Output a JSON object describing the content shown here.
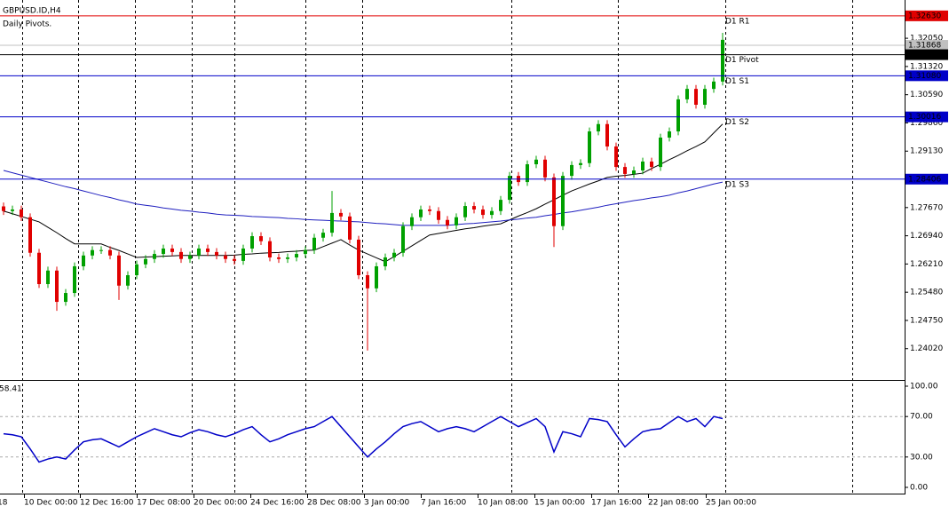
{
  "chart_data": [
    {
      "type": "candlestick",
      "title": "GBPUSD.ID,H4",
      "subtitle": "Daily Pivots.",
      "up_color": "#00a000",
      "down_color": "#e00000",
      "open": [
        1.277,
        1.2758,
        1.2762,
        1.2742,
        1.265,
        1.2569,
        1.2604,
        1.2523,
        1.2546,
        1.2615,
        1.2643,
        1.2657,
        1.2657,
        1.2643,
        1.2565,
        1.2592,
        1.262,
        1.2634,
        1.2647,
        1.2661,
        1.2652,
        1.2634,
        1.2643,
        1.2661,
        1.2652,
        1.2643,
        1.2634,
        1.2629,
        1.2661,
        1.2693,
        1.268,
        1.2638,
        1.2634,
        1.2638,
        1.2647,
        1.2657,
        1.2689,
        1.2702,
        1.2753,
        1.2744,
        1.2684,
        1.2592,
        1.2558,
        1.2615,
        1.2638,
        1.265,
        1.2719,
        1.2742,
        1.2762,
        1.2758,
        1.2735,
        1.2721,
        1.2742,
        1.2771,
        1.2762,
        1.2748,
        1.2758,
        1.2787,
        1.2849,
        1.2833,
        1.2879,
        1.2891,
        1.2845,
        1.2719,
        1.2849,
        1.2877,
        1.2882,
        1.2964,
        1.2983,
        1.2925,
        1.2872,
        1.2854,
        1.2863,
        1.2886,
        1.2872,
        1.2948,
        1.2964,
        1.3047,
        1.3074,
        1.3033,
        1.3074,
        1.3093
      ],
      "high": [
        1.278,
        1.2772,
        1.2772,
        1.2752,
        1.266,
        1.2614,
        1.2614,
        1.2556,
        1.2625,
        1.2653,
        1.2667,
        1.2667,
        1.2667,
        1.2653,
        1.2602,
        1.263,
        1.2644,
        1.2657,
        1.2671,
        1.2671,
        1.2662,
        1.2653,
        1.2671,
        1.2671,
        1.2662,
        1.2653,
        1.2644,
        1.2671,
        1.2703,
        1.2703,
        1.269,
        1.2648,
        1.2648,
        1.2657,
        1.2667,
        1.2699,
        1.2712,
        1.281,
        1.2763,
        1.2754,
        1.2694,
        1.2602,
        1.2625,
        1.2648,
        1.266,
        1.2729,
        1.2752,
        1.2772,
        1.2772,
        1.2768,
        1.2745,
        1.2752,
        1.2781,
        1.2781,
        1.2772,
        1.2768,
        1.2797,
        1.2859,
        1.2859,
        1.2889,
        1.2901,
        1.2901,
        1.2855,
        1.2859,
        1.2887,
        1.2892,
        1.2974,
        1.2993,
        1.2993,
        1.2935,
        1.2882,
        1.2873,
        1.2896,
        1.2896,
        1.2958,
        1.2974,
        1.3057,
        1.3084,
        1.3084,
        1.3084,
        1.3103,
        1.3219
      ],
      "low": [
        1.2748,
        1.2748,
        1.2732,
        1.264,
        1.2559,
        1.2559,
        1.25,
        1.2513,
        1.2536,
        1.2605,
        1.2633,
        1.2647,
        1.2633,
        1.2528,
        1.2555,
        1.2582,
        1.261,
        1.2624,
        1.2637,
        1.2642,
        1.2624,
        1.2624,
        1.2633,
        1.2642,
        1.2633,
        1.2624,
        1.2619,
        1.2619,
        1.2651,
        1.267,
        1.2628,
        1.2624,
        1.2624,
        1.2628,
        1.2637,
        1.2647,
        1.2679,
        1.2692,
        1.2734,
        1.2674,
        1.2582,
        1.2397,
        1.2548,
        1.2605,
        1.2628,
        1.264,
        1.2709,
        1.2732,
        1.2748,
        1.2725,
        1.2711,
        1.2711,
        1.2732,
        1.2752,
        1.2738,
        1.2738,
        1.2748,
        1.2777,
        1.2823,
        1.2823,
        1.2869,
        1.2835,
        1.2665,
        1.2709,
        1.2839,
        1.2867,
        1.2872,
        1.2954,
        1.2915,
        1.2862,
        1.2844,
        1.2844,
        1.2853,
        1.2862,
        1.2862,
        1.2938,
        1.2954,
        1.3037,
        1.3023,
        1.3023,
        1.3064,
        1.3083
      ],
      "close": [
        1.2758,
        1.2762,
        1.2742,
        1.265,
        1.2569,
        1.2604,
        1.2523,
        1.2546,
        1.2615,
        1.2643,
        1.2657,
        1.2657,
        1.2643,
        1.2565,
        1.2592,
        1.262,
        1.2634,
        1.2647,
        1.2661,
        1.2652,
        1.2634,
        1.2643,
        1.2661,
        1.2652,
        1.2643,
        1.2634,
        1.2629,
        1.2661,
        1.2693,
        1.268,
        1.2638,
        1.2634,
        1.2638,
        1.2647,
        1.2657,
        1.2689,
        1.2702,
        1.2753,
        1.2744,
        1.2684,
        1.2592,
        1.2558,
        1.2615,
        1.2638,
        1.265,
        1.2719,
        1.2742,
        1.2762,
        1.2758,
        1.2735,
        1.2721,
        1.2742,
        1.2771,
        1.2762,
        1.2748,
        1.2758,
        1.2787,
        1.2849,
        1.2833,
        1.2879,
        1.2891,
        1.2845,
        1.2719,
        1.2849,
        1.2877,
        1.2882,
        1.2964,
        1.2983,
        1.2925,
        1.2872,
        1.2854,
        1.2863,
        1.2886,
        1.2872,
        1.2948,
        1.2964,
        1.3047,
        1.3074,
        1.3033,
        1.3074,
        1.3093,
        1.3201
      ],
      "moving_averages": [
        {
          "color": "#000000",
          "values": [
            1.2758,
            1.2751,
            1.2744,
            1.2737,
            1.273,
            1.2716,
            1.2702,
            1.2687,
            1.2673,
            1.2673,
            1.2673,
            1.2673,
            1.2664,
            1.2656,
            1.2647,
            1.2638,
            1.2639,
            1.264,
            1.2641,
            1.2642,
            1.2643,
            1.2643,
            1.2643,
            1.2643,
            1.2643,
            1.2643,
            1.2644,
            1.2646,
            1.2647,
            1.2649,
            1.265,
            1.2651,
            1.2653,
            1.2654,
            1.2656,
            1.2657,
            1.2666,
            1.2675,
            1.2684,
            1.267,
            1.2657,
            1.2647,
            1.2637,
            1.2627,
            1.264,
            1.2654,
            1.2668,
            1.2682,
            1.2696,
            1.27,
            1.2704,
            1.2708,
            1.2712,
            1.2715,
            1.2719,
            1.2722,
            1.2725,
            1.2735,
            1.2745,
            1.2754,
            1.2764,
            1.2776,
            1.2787,
            1.2799,
            1.281,
            1.2819,
            1.2828,
            1.2836,
            1.2845,
            1.2848,
            1.285,
            1.2853,
            1.2856,
            1.2868,
            1.2879,
            1.2891,
            1.2902,
            1.2914,
            1.2925,
            1.2937,
            1.296,
            1.2983
          ]
        },
        {
          "color": "#1f1fbf",
          "values": [
            1.2863,
            1.2857,
            1.2851,
            1.2845,
            1.2839,
            1.2833,
            1.2827,
            1.2821,
            1.2816,
            1.281,
            1.2804,
            1.2798,
            1.2793,
            1.2787,
            1.2782,
            1.2776,
            1.2773,
            1.277,
            1.2766,
            1.2763,
            1.276,
            1.2758,
            1.2755,
            1.2753,
            1.275,
            1.2748,
            1.2747,
            1.2746,
            1.2744,
            1.2743,
            1.2742,
            1.2741,
            1.2739,
            1.2738,
            1.2736,
            1.2735,
            1.2734,
            1.2733,
            1.2732,
            1.2731,
            1.273,
            1.2728,
            1.2726,
            1.2725,
            1.2723,
            1.2721,
            1.2721,
            1.2721,
            1.2721,
            1.2721,
            1.2721,
            1.2723,
            1.2725,
            1.2726,
            1.2728,
            1.273,
            1.2732,
            1.2735,
            1.2737,
            1.274,
            1.2742,
            1.2746,
            1.2749,
            1.2753,
            1.2756,
            1.276,
            1.2764,
            1.2768,
            1.2773,
            1.2777,
            1.2781,
            1.2785,
            1.2788,
            1.2792,
            1.2795,
            1.2799,
            1.2805,
            1.281,
            1.2816,
            1.2822,
            1.2828,
            1.2833
          ]
        }
      ],
      "current_price": {
        "value": 1.31868,
        "color": "#c0c0c0"
      },
      "pivots": [
        {
          "name": "D1 R1",
          "value": {
            "value": 1.3263,
            "label": "1.32630"
          },
          "color": "#e00000"
        },
        {
          "name": "D1 Pivot",
          "value": 1.31626,
          "color": "#000000"
        },
        {
          "name": "D1 S1",
          "value": {
            "value": 1.3108,
            "label": "1.31080"
          },
          "color": "#0000c8"
        },
        {
          "name": "D1 S2",
          "value": 1.30016,
          "color": "#0000c8"
        },
        {
          "name": "D1 S3",
          "value": 1.28406,
          "color": "#0000c8"
        }
      ],
      "ylim": [
        1.2321,
        1.3304
      ],
      "yticks": [
        {
          "value": 1.3205,
          "label": "1.32050"
        },
        {
          "value": 1.3132,
          "label": "1.31320"
        },
        {
          "value": 1.3059,
          "label": "1.30590"
        },
        {
          "value": 1.2986,
          "label": "1.29860"
        },
        {
          "value": 1.2913,
          "label": "1.29130"
        },
        {
          "value": 1.2767,
          "label": "1.27670"
        },
        {
          "value": 1.2694,
          "label": "1.26940"
        },
        {
          "value": 1.2621,
          "label": "1.26210"
        },
        {
          "value": 1.2548,
          "label": "1.25480"
        },
        {
          "value": 1.2475,
          "label": "1.24750"
        },
        {
          "value": 1.2402,
          "label": "1.24020"
        }
      ],
      "time_labels": [
        "18",
        "10 Dec 00:00",
        "12 Dec 16:00",
        "17 Dec 08:00",
        "20 Dec 00:00",
        "24 Dec 16:00",
        "28 Dec 08:00",
        "3 Jan 00:00",
        "7 Jan 16:00",
        "10 Jan 08:00",
        "15 Jan 00:00",
        "17 Jan 16:00",
        "22 Jan 08:00",
        "25 Jan 00:00"
      ]
    },
    {
      "type": "line",
      "label": "58.41",
      "color": "#0000c8",
      "values": [
        53,
        52,
        50,
        38,
        25,
        28,
        30,
        28,
        37,
        45,
        47,
        48,
        44,
        40,
        45,
        50,
        54,
        58,
        55,
        52,
        50,
        54,
        57,
        55,
        52,
        50,
        53,
        57,
        60,
        52,
        45,
        48,
        52,
        55,
        58,
        60,
        65,
        70,
        60,
        50,
        40,
        30,
        38,
        45,
        53,
        60,
        63,
        65,
        60,
        55,
        58,
        60,
        58,
        55,
        60,
        65,
        70,
        65,
        60,
        64,
        68,
        60,
        35,
        55,
        53,
        50,
        68,
        67,
        65,
        52,
        40,
        48,
        55,
        57,
        58,
        64,
        70,
        65,
        68,
        60,
        70,
        68
      ],
      "ylim": [
        0,
        100
      ],
      "yticks": [
        {
          "value": 100,
          "label": "100.00"
        },
        {
          "value": 70,
          "label": "70.00"
        },
        {
          "value": 30,
          "label": "30.00"
        },
        {
          "value": 0,
          "label": "0.00"
        }
      ]
    }
  ]
}
